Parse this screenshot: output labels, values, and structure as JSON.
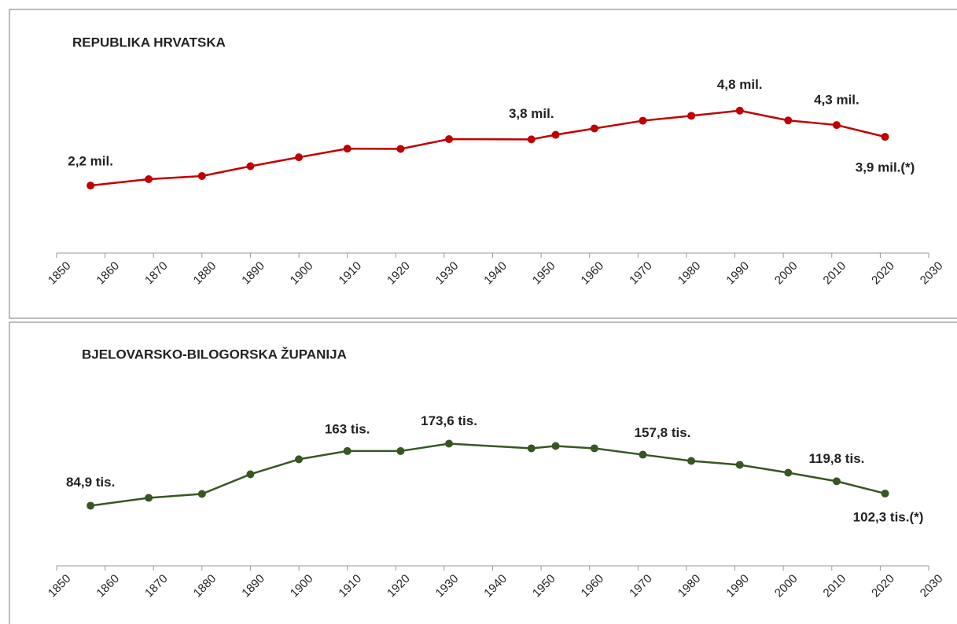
{
  "chart_data": [
    {
      "type": "line",
      "title": "REPUBLIKA HRVATSKA",
      "x": [
        1857,
        1869,
        1880,
        1890,
        1900,
        1910,
        1921,
        1931,
        1948,
        1953,
        1961,
        1971,
        1981,
        1991,
        2001,
        2011,
        2021
      ],
      "series": [
        {
          "name": "Republika Hrvatska",
          "color": "#c00000",
          "values": [
            2.18,
            2.4,
            2.51,
            2.85,
            3.16,
            3.46,
            3.45,
            3.79,
            3.78,
            3.94,
            4.16,
            4.43,
            4.6,
            4.78,
            4.44,
            4.28,
            3.87
          ],
          "value_labels": [
            "2,2 mil.",
            null,
            null,
            null,
            null,
            null,
            null,
            null,
            "3,8 mil.",
            null,
            null,
            null,
            null,
            "4,8 mil.",
            null,
            "4,3 mil.",
            "3,9 mil.(*)"
          ]
        }
      ],
      "xlim": [
        1850,
        2030
      ],
      "xticks": [
        1850,
        1860,
        1870,
        1880,
        1890,
        1900,
        1910,
        1920,
        1930,
        1940,
        1950,
        1960,
        1970,
        1980,
        1990,
        2000,
        2010,
        2020,
        2030
      ],
      "ylim": [
        0,
        6
      ]
    },
    {
      "type": "line",
      "title": "BJELOVARSKO-BILOGORSKA ŽUPANIJA",
      "x": [
        1857,
        1869,
        1880,
        1890,
        1900,
        1910,
        1921,
        1931,
        1948,
        1953,
        1961,
        1971,
        1981,
        1991,
        2001,
        2011,
        2021
      ],
      "series": [
        {
          "name": "Bjelovarsko-bilogorska županija",
          "color": "#375623",
          "values": [
            84.9,
            96.1,
            101.7,
            129.8,
            151.2,
            163,
            163,
            173.6,
            166.9,
            170.2,
            166.9,
            157.8,
            148.9,
            143.3,
            132,
            119.8,
            102.3
          ],
          "value_labels": [
            "84,9 tis.",
            null,
            null,
            null,
            null,
            "163 tis.",
            null,
            "173,6 tis.",
            null,
            null,
            null,
            "157,8 tis.",
            null,
            null,
            null,
            "119,8 tis.",
            "102,3 tis.(*)"
          ]
        }
      ],
      "xlim": [
        1850,
        2030
      ],
      "xticks": [
        1850,
        1860,
        1870,
        1880,
        1890,
        1900,
        1910,
        1920,
        1930,
        1940,
        1950,
        1960,
        1970,
        1980,
        1990,
        2000,
        2010,
        2020,
        2030
      ],
      "ylim": [
        0,
        200
      ]
    }
  ]
}
